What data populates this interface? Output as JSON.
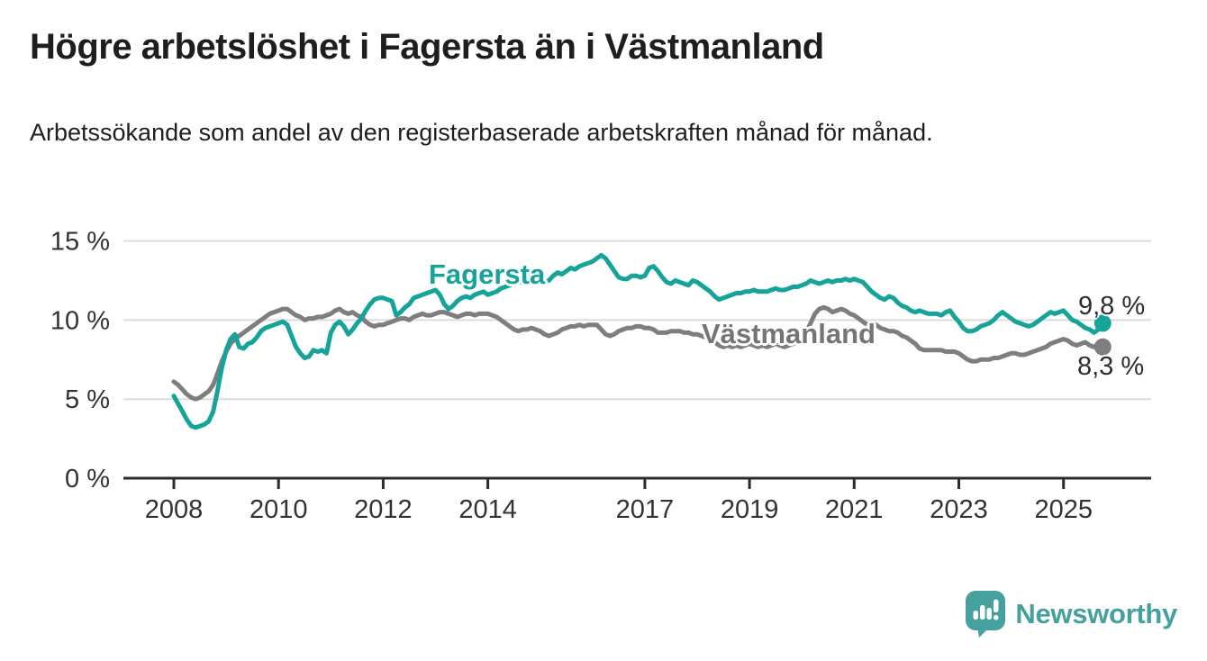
{
  "title": "Högre arbetslöshet i Fagersta än i Västmanland",
  "subtitle": "Arbetssökande som andel av den registerbaserade arbetskraften månad för månad.",
  "colors": {
    "fagersta": "#15a39a",
    "vastmanland": "#7e7e7e",
    "grid": "#dcdcdc",
    "axis": "#2b2b2b",
    "tick_text": "#333333",
    "value_label": "#2d2d2d",
    "vastmanland_label": "#757575",
    "logo": "#46a09e"
  },
  "chart_data": {
    "type": "line",
    "unit": "%",
    "interval": "monthly",
    "x_start": {
      "year": 2008,
      "month": 1
    },
    "x_end": {
      "year": 2025,
      "month": 10
    },
    "ylim": [
      0,
      15.6
    ],
    "grid": "horizontal",
    "legend_position": "inline-labels",
    "yticks": [
      {
        "v": 15,
        "label": "15 %"
      },
      {
        "v": 10,
        "label": "10 %"
      },
      {
        "v": 5,
        "label": "5 %"
      },
      {
        "v": 0,
        "label": "0 %"
      }
    ],
    "xticks": [
      {
        "v": 2008,
        "label": "2008"
      },
      {
        "v": 2010,
        "label": "2010"
      },
      {
        "v": 2012,
        "label": "2012"
      },
      {
        "v": 2014,
        "label": "2014"
      },
      {
        "v": 2017,
        "label": "2017"
      },
      {
        "v": 2019,
        "label": "2019"
      },
      {
        "v": 2021,
        "label": "2021"
      },
      {
        "v": 2023,
        "label": "2023"
      },
      {
        "v": 2025,
        "label": "2025"
      }
    ],
    "series": [
      {
        "name": "Fagersta",
        "color_key": "fagersta",
        "end_label": "9,8 %",
        "end_value": 9.8,
        "values": [
          5.2,
          4.7,
          4.2,
          3.7,
          3.3,
          3.2,
          3.3,
          3.4,
          3.6,
          4.2,
          5.5,
          7.0,
          8.1,
          8.8,
          9.1,
          8.3,
          8.2,
          8.5,
          8.6,
          8.9,
          9.3,
          9.5,
          9.6,
          9.7,
          9.8,
          9.9,
          9.7,
          9.0,
          8.3,
          7.9,
          7.6,
          7.7,
          8.1,
          8.0,
          8.1,
          7.9,
          9.2,
          9.7,
          9.9,
          9.6,
          9.1,
          9.4,
          9.8,
          10.1,
          10.6,
          11.0,
          11.3,
          11.4,
          11.4,
          11.3,
          11.2,
          10.3,
          10.5,
          10.8,
          11.0,
          11.4,
          11.5,
          11.6,
          11.7,
          11.8,
          11.9,
          11.6,
          11.0,
          10.7,
          10.9,
          11.2,
          11.4,
          11.5,
          11.4,
          11.6,
          11.7,
          11.8,
          11.6,
          11.7,
          11.8,
          12.0,
          12.1,
          12.2,
          12.3,
          12.4,
          12.4,
          12.6,
          12.8,
          12.9,
          12.6,
          12.4,
          12.5,
          12.8,
          13.0,
          12.9,
          13.1,
          13.3,
          13.2,
          13.4,
          13.5,
          13.6,
          13.7,
          13.9,
          14.1,
          13.9,
          13.5,
          13.1,
          12.7,
          12.6,
          12.6,
          12.8,
          12.8,
          12.7,
          12.8,
          13.3,
          13.4,
          13.1,
          12.7,
          12.4,
          12.3,
          12.5,
          12.4,
          12.3,
          12.2,
          12.5,
          12.4,
          12.2,
          12.0,
          11.8,
          11.5,
          11.3,
          11.4,
          11.5,
          11.6,
          11.7,
          11.7,
          11.8,
          11.8,
          11.9,
          11.8,
          11.8,
          11.8,
          11.9,
          12.0,
          11.9,
          11.9,
          12.0,
          12.1,
          12.1,
          12.2,
          12.3,
          12.5,
          12.4,
          12.3,
          12.4,
          12.5,
          12.4,
          12.5,
          12.5,
          12.6,
          12.5,
          12.6,
          12.5,
          12.4,
          12.1,
          11.8,
          11.6,
          11.4,
          11.3,
          11.5,
          11.4,
          11.1,
          10.9,
          10.8,
          10.6,
          10.5,
          10.6,
          10.5,
          10.4,
          10.4,
          10.4,
          10.3,
          10.5,
          10.6,
          10.2,
          9.9,
          9.5,
          9.3,
          9.3,
          9.4,
          9.6,
          9.7,
          9.8,
          10.0,
          10.3,
          10.5,
          10.3,
          10.1,
          9.9,
          9.8,
          9.7,
          9.6,
          9.7,
          9.9,
          10.1,
          10.3,
          10.5,
          10.4,
          10.5,
          10.6,
          10.3,
          10.0,
          9.9,
          9.7,
          9.5,
          9.4,
          9.2,
          9.4,
          9.8
        ]
      },
      {
        "name": "Västmanland",
        "color_key": "vastmanland",
        "end_label": "8,3 %",
        "end_value": 8.3,
        "values": [
          6.1,
          5.9,
          5.6,
          5.3,
          5.1,
          5.0,
          5.1,
          5.3,
          5.5,
          5.9,
          6.6,
          7.4,
          8.0,
          8.5,
          8.8,
          9.0,
          9.2,
          9.4,
          9.6,
          9.8,
          10.0,
          10.2,
          10.4,
          10.5,
          10.6,
          10.7,
          10.7,
          10.5,
          10.3,
          10.2,
          10.0,
          10.1,
          10.1,
          10.2,
          10.2,
          10.3,
          10.4,
          10.6,
          10.7,
          10.5,
          10.4,
          10.5,
          10.3,
          10.2,
          9.9,
          9.7,
          9.6,
          9.7,
          9.7,
          9.8,
          9.9,
          10.0,
          10.1,
          10.1,
          10.0,
          10.2,
          10.3,
          10.4,
          10.3,
          10.3,
          10.4,
          10.5,
          10.5,
          10.4,
          10.3,
          10.2,
          10.3,
          10.4,
          10.4,
          10.3,
          10.4,
          10.4,
          10.4,
          10.3,
          10.2,
          10.0,
          9.8,
          9.6,
          9.4,
          9.3,
          9.4,
          9.4,
          9.5,
          9.4,
          9.3,
          9.1,
          9.0,
          9.1,
          9.2,
          9.4,
          9.5,
          9.6,
          9.6,
          9.7,
          9.6,
          9.7,
          9.7,
          9.7,
          9.4,
          9.1,
          9.0,
          9.1,
          9.3,
          9.4,
          9.5,
          9.5,
          9.6,
          9.6,
          9.5,
          9.5,
          9.4,
          9.2,
          9.2,
          9.2,
          9.3,
          9.3,
          9.3,
          9.2,
          9.2,
          9.1,
          9.1,
          9.0,
          8.9,
          8.8,
          8.6,
          8.4,
          8.3,
          8.4,
          8.3,
          8.4,
          8.3,
          8.4,
          8.5,
          8.4,
          8.3,
          8.4,
          8.3,
          8.4,
          8.5,
          8.4,
          8.3,
          8.4,
          8.5,
          8.6,
          8.8,
          9.2,
          9.8,
          10.4,
          10.7,
          10.8,
          10.7,
          10.5,
          10.6,
          10.7,
          10.6,
          10.4,
          10.3,
          10.1,
          9.9,
          9.7,
          9.6,
          9.7,
          9.5,
          9.4,
          9.3,
          9.3,
          9.2,
          9.0,
          8.9,
          8.7,
          8.5,
          8.2,
          8.1,
          8.1,
          8.1,
          8.1,
          8.1,
          8.0,
          8.0,
          8.0,
          7.9,
          7.7,
          7.5,
          7.4,
          7.4,
          7.5,
          7.5,
          7.5,
          7.6,
          7.6,
          7.7,
          7.8,
          7.9,
          7.9,
          7.8,
          7.8,
          7.9,
          8.0,
          8.1,
          8.2,
          8.3,
          8.5,
          8.6,
          8.7,
          8.8,
          8.7,
          8.5,
          8.4,
          8.5,
          8.6,
          8.4,
          8.3,
          8.5,
          8.3
        ]
      }
    ]
  },
  "logo": {
    "name": "Newsworthy"
  }
}
